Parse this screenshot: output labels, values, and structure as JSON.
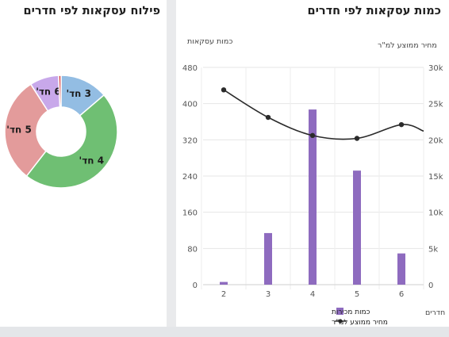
{
  "left_panel": {
    "title": "פילוח עסקאות לפי חדרים"
  },
  "right_panel": {
    "title": "כמות עסקאות לפי חדרים"
  },
  "chart_data": [
    {
      "type": "pie",
      "title": "פילוח עסקאות לפי חדרים",
      "donut": true,
      "slices": [
        {
          "label": "3 חד'",
          "value": 114,
          "color": "#93bde3"
        },
        {
          "label": "4 חד'",
          "value": 387,
          "color": "#6fbf73"
        },
        {
          "label": "5 חד'",
          "value": 252,
          "color": "#e39b9b"
        },
        {
          "label": "6 חד'",
          "value": 69,
          "color": "#c8a8ea"
        },
        {
          "label": "",
          "value": 6,
          "color": "#d94f4f"
        }
      ]
    },
    {
      "type": "bar+line",
      "title": "כמות עסקאות לפי חדרים",
      "categories": [
        "2",
        "3",
        "4",
        "5",
        "6"
      ],
      "xlabel": "חדרים",
      "ylabel_left": "כמות עסקאות",
      "ylabel_right": "מחיר ממוצע למ\"ר",
      "ylim_left": [
        0,
        480
      ],
      "yticks_left": [
        "0",
        "80",
        "160",
        "240",
        "320",
        "400",
        "480"
      ],
      "ylim_right": [
        0,
        30000
      ],
      "yticks_right": [
        "0",
        "5k",
        "10k",
        "15k",
        "20k",
        "25k",
        "30k"
      ],
      "grid": true,
      "series": [
        {
          "name": "כמות מכירות",
          "type": "bar",
          "axis": "left",
          "color": "#8e6bbf",
          "values": [
            6,
            114,
            387,
            252,
            69
          ]
        },
        {
          "name": "מחיר ממוצע למ\"ר",
          "type": "line",
          "axis": "right",
          "color": "#2b2b2b",
          "values": [
            26900,
            23100,
            20600,
            20200,
            22100
          ]
        }
      ],
      "legend_position": "bottom"
    }
  ]
}
